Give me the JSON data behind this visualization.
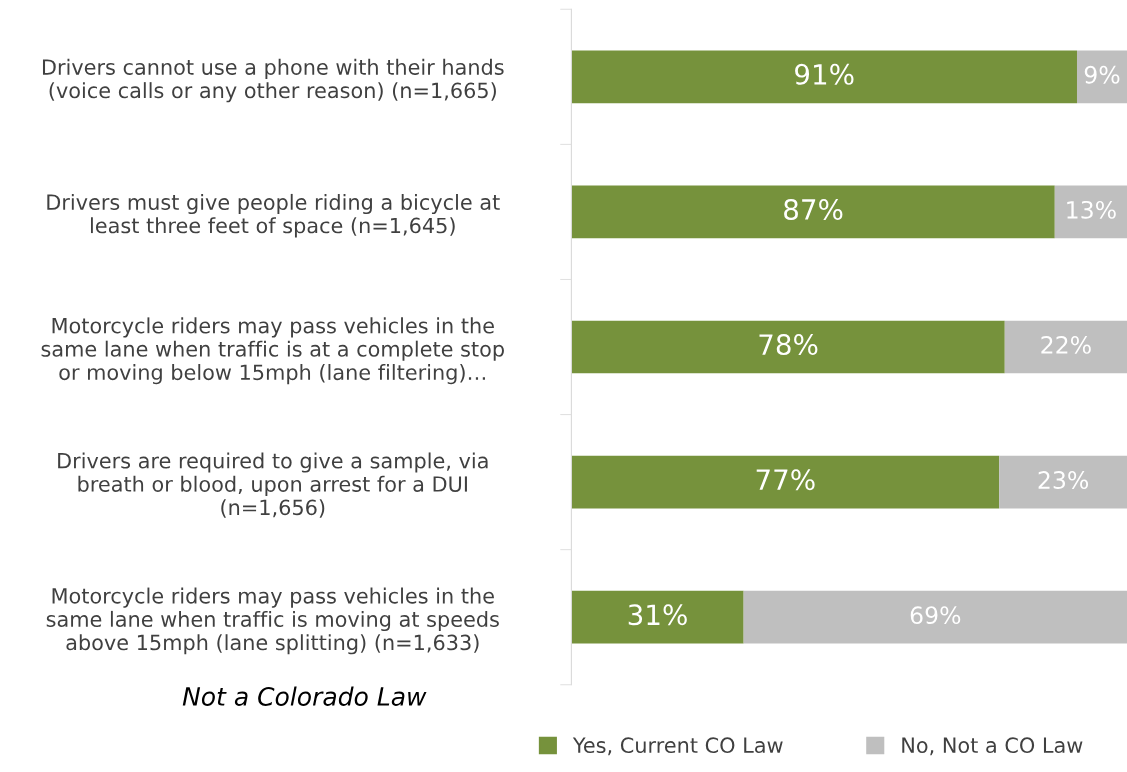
{
  "chart_data": {
    "type": "bar",
    "orientation": "horizontal",
    "stacked": true,
    "categories": [
      "Drivers cannot use a phone with their hands\n(voice calls or any other reason) (n=1,665)",
      "Drivers must give people riding a bicycle at\nleast three feet of space (n=1,645)",
      "Motorcycle riders may pass vehicles in the\nsame lane when traffic is at a complete stop\nor moving below 15mph (lane filtering)…",
      "Drivers are required to give a sample, via\nbreath or blood, upon arrest for a DUI\n(n=1,656)",
      "Motorcycle riders may pass vehicles in the\nsame lane when traffic is moving at speeds\nabove 15mph (lane splitting) (n=1,633)"
    ],
    "series": [
      {
        "name": "Yes, Current CO Law",
        "color": "#76923c",
        "values": [
          91,
          87,
          78,
          77,
          31
        ],
        "value_labels": [
          "91%",
          "87%",
          "78%",
          "77%",
          "31%"
        ]
      },
      {
        "name": "No, Not a CO Law",
        "color": "#bfbfbf",
        "values": [
          9,
          13,
          22,
          23,
          69
        ],
        "value_labels": [
          "9%",
          "13%",
          "22%",
          "23%",
          "69%"
        ]
      }
    ],
    "legend": "bottom",
    "grid": false,
    "annotations": [
      "Not a Colorado Law"
    ]
  }
}
